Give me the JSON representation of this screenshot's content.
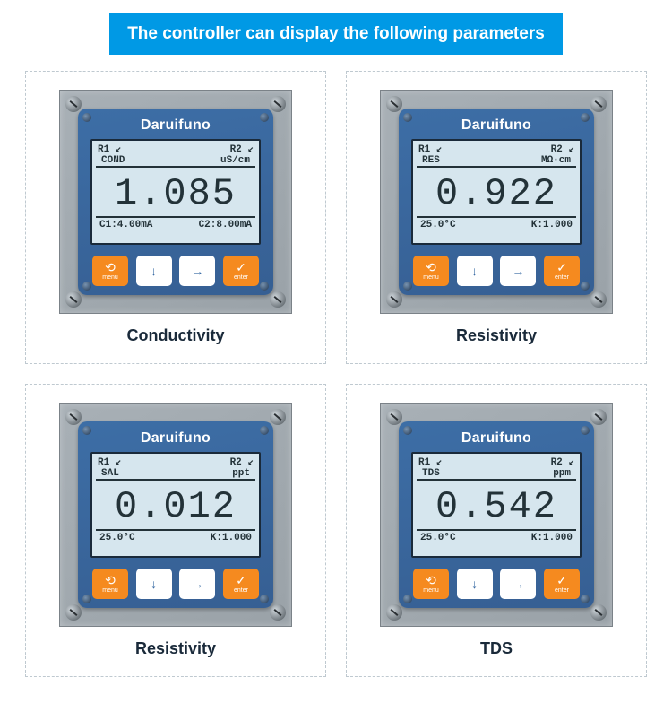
{
  "header": "The controller can display the following parameters",
  "brand": "Daruifuno",
  "buttons": {
    "menu": "menu",
    "enter": "enter"
  },
  "devices": [
    {
      "label": "Conductivity",
      "top_left": "R1 ↙",
      "top_right": "R2 ↙",
      "row2_left": "COND",
      "row2_right": "uS/cm",
      "main": "1.085",
      "bottom_left": "C1:4.00mA",
      "bottom_right": "C2:8.00mA"
    },
    {
      "label": "Resistivity",
      "top_left": "R1 ↙",
      "top_right": "R2 ↙",
      "row2_left": "RES",
      "row2_right": "MΩ·cm",
      "main": "0.922",
      "bottom_left": "25.0°C",
      "bottom_right": "K:1.000"
    },
    {
      "label": "Resistivity",
      "top_left": "R1 ↙",
      "top_right": "R2 ↙",
      "row2_left": "SAL",
      "row2_right": "ppt",
      "main": "0.012",
      "bottom_left": "25.0°C",
      "bottom_right": "K:1.000"
    },
    {
      "label": "TDS",
      "top_left": "R1 ↙",
      "top_right": "R2 ↙",
      "row2_left": "TDS",
      "row2_right": "ppm",
      "main": "0.542",
      "bottom_left": "25.0°C",
      "bottom_right": "K:1.000"
    }
  ],
  "colors": {
    "header_bg": "#0099e5",
    "device_bg": "#3d6ea6",
    "panel_bg": "#a4acb2",
    "lcd_bg": "#d6e6ee",
    "btn_orange": "#f58a1f",
    "btn_white": "#ffffff",
    "border_dash": "#bfc9d0"
  }
}
